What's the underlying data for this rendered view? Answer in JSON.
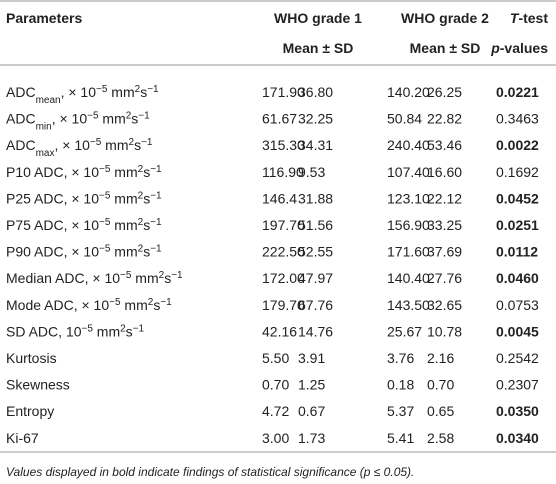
{
  "header": {
    "parameters": "Parameters",
    "groups": [
      {
        "name": "WHO grade 1",
        "sub": "Mean ± SD"
      },
      {
        "name": "WHO grade 2",
        "sub": "Mean ± SD"
      }
    ],
    "test": [
      {
        "text": "T",
        "style": "italic"
      },
      {
        "text": "-test"
      }
    ],
    "pvalues": [
      {
        "text": "p",
        "style": "italic"
      },
      {
        "text": "-values"
      }
    ]
  },
  "table": {
    "rows": [
      {
        "parameter": [
          {
            "text": "ADC"
          },
          {
            "text": "mean",
            "style": "sub"
          },
          {
            "text": ", × 10"
          },
          {
            "text": "−5",
            "style": "sup"
          },
          {
            "text": " mm"
          },
          {
            "text": "2",
            "style": "sup"
          },
          {
            "text": "s"
          },
          {
            "text": "−1",
            "style": "sup"
          }
        ],
        "values": [
          "171.90",
          "36.80",
          "140.20",
          "26.25"
        ],
        "p": "0.0221",
        "bold": true
      },
      {
        "parameter": [
          {
            "text": "ADC"
          },
          {
            "text": "min",
            "style": "sub"
          },
          {
            "text": ", × 10"
          },
          {
            "text": "−5",
            "style": "sup"
          },
          {
            "text": " mm"
          },
          {
            "text": "2",
            "style": "sup"
          },
          {
            "text": "s"
          },
          {
            "text": "−1",
            "style": "sup"
          }
        ],
        "values": [
          "61.67",
          "32.25",
          "50.84",
          "22.82"
        ],
        "p": "0.3463",
        "bold": false
      },
      {
        "parameter": [
          {
            "text": "ADC"
          },
          {
            "text": "max",
            "style": "sub"
          },
          {
            "text": ", × 10"
          },
          {
            "text": "−5",
            "style": "sup"
          },
          {
            "text": " mm"
          },
          {
            "text": "2",
            "style": "sup"
          },
          {
            "text": "s"
          },
          {
            "text": "−1",
            "style": "sup"
          }
        ],
        "values": [
          "315.30",
          "34.31",
          "240.40",
          "53.46"
        ],
        "p": "0.0022",
        "bold": true
      },
      {
        "parameter": [
          {
            "text": "P10 ADC, × 10"
          },
          {
            "text": "−5",
            "style": "sup"
          },
          {
            "text": " mm"
          },
          {
            "text": "2",
            "style": "sup"
          },
          {
            "text": "s"
          },
          {
            "text": "−1",
            "style": "sup"
          }
        ],
        "values": [
          "116.90",
          "9.53",
          "107.40",
          "16.60"
        ],
        "p": "0.1692",
        "bold": false
      },
      {
        "parameter": [
          {
            "text": "P25 ADC, × 10"
          },
          {
            "text": "−5",
            "style": "sup"
          },
          {
            "text": " mm"
          },
          {
            "text": "2",
            "style": "sup"
          },
          {
            "text": "s"
          },
          {
            "text": "−1",
            "style": "sup"
          }
        ],
        "values": [
          "146.4",
          "31.88",
          "123.10",
          "22.12"
        ],
        "p": "0.0452",
        "bold": true
      },
      {
        "parameter": [
          {
            "text": "P75 ADC, × 10"
          },
          {
            "text": "−5",
            "style": "sup"
          },
          {
            "text": " mm"
          },
          {
            "text": "2",
            "style": "sup"
          },
          {
            "text": "s"
          },
          {
            "text": "−1",
            "style": "sup"
          }
        ],
        "values": [
          "197.70",
          "51.56",
          "156.90",
          "33.25"
        ],
        "p": "0.0251",
        "bold": true
      },
      {
        "parameter": [
          {
            "text": "P90 ADC, × 10"
          },
          {
            "text": "−5",
            "style": "sup"
          },
          {
            "text": " mm"
          },
          {
            "text": "2",
            "style": "sup"
          },
          {
            "text": "s"
          },
          {
            "text": "−1",
            "style": "sup"
          }
        ],
        "values": [
          "222.50",
          "52.55",
          "171.60",
          "37.69"
        ],
        "p": "0.0112",
        "bold": true
      },
      {
        "parameter": [
          {
            "text": "Median ADC, × 10"
          },
          {
            "text": "−5",
            "style": "sup"
          },
          {
            "text": " mm"
          },
          {
            "text": "2",
            "style": "sup"
          },
          {
            "text": "s"
          },
          {
            "text": "−1",
            "style": "sup"
          }
        ],
        "values": [
          "172.00",
          "47.97",
          "140.40",
          "27.76"
        ],
        "p": "0.0460",
        "bold": true
      },
      {
        "parameter": [
          {
            "text": "Mode ADC, × 10"
          },
          {
            "text": "−5",
            "style": "sup"
          },
          {
            "text": " mm"
          },
          {
            "text": "2",
            "style": "sup"
          },
          {
            "text": "s"
          },
          {
            "text": "−1",
            "style": "sup"
          }
        ],
        "values": [
          "179.70",
          "67.76",
          "143.50",
          "32.65"
        ],
        "p": "0.0753",
        "bold": false
      },
      {
        "parameter": [
          {
            "text": "SD ADC, 10"
          },
          {
            "text": "−5",
            "style": "sup"
          },
          {
            "text": " mm"
          },
          {
            "text": "2",
            "style": "sup"
          },
          {
            "text": "s"
          },
          {
            "text": "−1",
            "style": "sup"
          }
        ],
        "values": [
          "42.16",
          "14.76",
          "25.67",
          "10.78"
        ],
        "p": "0.0045",
        "bold": true
      },
      {
        "parameter": [
          {
            "text": "Kurtosis"
          }
        ],
        "values": [
          "5.50",
          "3.91",
          "3.76",
          "2.16"
        ],
        "p": "0.2542",
        "bold": false
      },
      {
        "parameter": [
          {
            "text": "Skewness"
          }
        ],
        "values": [
          "0.70",
          "1.25",
          "0.18",
          "0.70"
        ],
        "p": "0.2307",
        "bold": false
      },
      {
        "parameter": [
          {
            "text": "Entropy"
          }
        ],
        "values": [
          "4.72",
          "0.67",
          "5.37",
          "0.65"
        ],
        "p": "0.0350",
        "bold": true
      },
      {
        "parameter": [
          {
            "text": "Ki-67"
          }
        ],
        "values": [
          "3.00",
          "1.73",
          "5.41",
          "2.58"
        ],
        "p": "0.0340",
        "bold": true
      }
    ]
  },
  "footnote": "Values displayed in bold indicate findings of statistical significance (p ≤ 0.05)."
}
